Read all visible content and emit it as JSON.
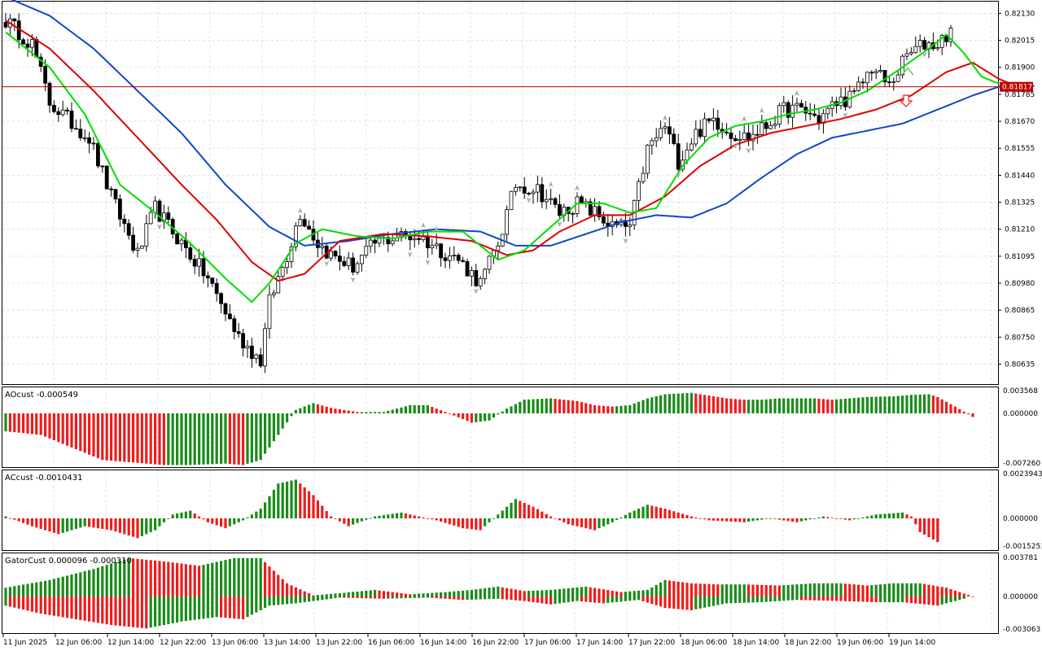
{
  "colors": {
    "background": "#ffffff",
    "grid": "#d9d9d9",
    "border": "#000000",
    "bull_body": "#ffffff",
    "bear_body": "#000000",
    "wick": "#000000",
    "lips": "#00dd00",
    "teeth": "#dd0000",
    "jaw": "#1146c8",
    "price_line": "#c00000",
    "hist_up": "#198c19",
    "hist_down": "#ee1c1c",
    "fractal": "#a8a8a8",
    "arrow_up": "#55cc55",
    "arrow_down": "#ee2222"
  },
  "main": {
    "price_ticks": [
      "0.82130",
      "0.82015",
      "0.81900",
      "0.81785",
      "0.81670",
      "0.81555",
      "0.81440",
      "0.81325",
      "0.81210",
      "0.81095",
      "0.80980",
      "0.80865",
      "0.80750",
      "0.80635"
    ],
    "current_price_label": "0.81817",
    "current_price": 0.81817
  },
  "ao": {
    "label": "AOcust -0.000549",
    "ticks": [
      "0.003568",
      "0.000000",
      "-0.007260"
    ]
  },
  "ac": {
    "label": "ACcust -0.0010431",
    "ticks": [
      "0.0023943",
      "0.000000",
      "-0.0015251"
    ]
  },
  "gator": {
    "label": "GatorCust 0.000096 -0.000310",
    "ticks": [
      "0.003781",
      "0.000000",
      "-0.003063"
    ]
  },
  "time_axis": [
    "11 Jun 2025",
    "12 Jun 06:00",
    "12 Jun 14:00",
    "12 Jun 22:00",
    "13 Jun 06:00",
    "13 Jun 14:00",
    "13 Jun 22:00",
    "16 Jun 06:00",
    "16 Jun 14:00",
    "16 Jun 22:00",
    "17 Jun 06:00",
    "17 Jun 14:00",
    "17 Jun 22:00",
    "18 Jun 06:00",
    "18 Jun 14:00",
    "18 Jun 22:00",
    "19 Jun 06:00",
    "19 Jun 14:00"
  ],
  "chart_data": [
    {
      "type": "candlestick",
      "pane": "main",
      "ylim": [
        0.8055,
        0.8218
      ],
      "series_names": [
        "lips",
        "teeth",
        "jaw"
      ],
      "anchors": [
        [
          0,
          0.821
        ],
        [
          6,
          0.82
        ],
        [
          10,
          0.8175
        ],
        [
          14,
          0.8168
        ],
        [
          19,
          0.816
        ],
        [
          24,
          0.8135
        ],
        [
          30,
          0.811
        ],
        [
          34,
          0.813
        ],
        [
          40,
          0.8115
        ],
        [
          46,
          0.81
        ],
        [
          53,
          0.8075
        ],
        [
          58,
          0.8065
        ],
        [
          60,
          0.809
        ],
        [
          64,
          0.811
        ],
        [
          67,
          0.8128
        ],
        [
          71,
          0.8115
        ],
        [
          74,
          0.811
        ],
        [
          79,
          0.8105
        ],
        [
          84,
          0.8115
        ],
        [
          89,
          0.8118
        ],
        [
          94,
          0.8118
        ],
        [
          99,
          0.8112
        ],
        [
          103,
          0.8108
        ],
        [
          108,
          0.8098
        ],
        [
          112,
          0.8115
        ],
        [
          116,
          0.814
        ],
        [
          121,
          0.8138
        ],
        [
          126,
          0.8128
        ],
        [
          130,
          0.8132
        ],
        [
          134,
          0.8128
        ],
        [
          138,
          0.8122
        ],
        [
          142,
          0.8122
        ],
        [
          146,
          0.8155
        ],
        [
          150,
          0.8165
        ],
        [
          153,
          0.815
        ],
        [
          157,
          0.8162
        ],
        [
          161,
          0.8168
        ],
        [
          165,
          0.8162
        ],
        [
          169,
          0.816
        ],
        [
          173,
          0.8165
        ],
        [
          177,
          0.8172
        ],
        [
          181,
          0.8172
        ],
        [
          185,
          0.8168
        ],
        [
          189,
          0.8175
        ],
        [
          193,
          0.8178
        ],
        [
          197,
          0.819
        ],
        [
          201,
          0.8182
        ],
        [
          205,
          0.8195
        ],
        [
          209,
          0.82
        ],
        [
          212,
          0.82
        ],
        [
          216,
          0.8208
        ],
        [
          219,
          0.8165
        ],
        [
          221,
          0.8158
        ],
        [
          224,
          0.8175
        ],
        [
          229,
          0.818
        ]
      ],
      "lips_anchors": [
        [
          0,
          0.8205
        ],
        [
          10,
          0.819
        ],
        [
          18,
          0.817
        ],
        [
          26,
          0.814
        ],
        [
          34,
          0.8128
        ],
        [
          42,
          0.8115
        ],
        [
          50,
          0.81
        ],
        [
          56,
          0.809
        ],
        [
          60,
          0.8098
        ],
        [
          66,
          0.8115
        ],
        [
          72,
          0.8121
        ],
        [
          80,
          0.8118
        ],
        [
          88,
          0.8117
        ],
        [
          96,
          0.812
        ],
        [
          104,
          0.812
        ],
        [
          112,
          0.8108
        ],
        [
          118,
          0.8112
        ],
        [
          124,
          0.8122
        ],
        [
          130,
          0.8132
        ],
        [
          136,
          0.8132
        ],
        [
          142,
          0.8128
        ],
        [
          148,
          0.813
        ],
        [
          154,
          0.8148
        ],
        [
          160,
          0.816
        ],
        [
          166,
          0.8165
        ],
        [
          172,
          0.8167
        ],
        [
          178,
          0.817
        ],
        [
          184,
          0.8172
        ],
        [
          190,
          0.8175
        ],
        [
          196,
          0.818
        ],
        [
          204,
          0.819
        ],
        [
          210,
          0.8198
        ],
        [
          214,
          0.8204
        ],
        [
          218,
          0.8196
        ],
        [
          222,
          0.8186
        ],
        [
          226,
          0.8183
        ]
      ],
      "teeth_anchors": [
        [
          0,
          0.821
        ],
        [
          10,
          0.8198
        ],
        [
          20,
          0.818
        ],
        [
          30,
          0.816
        ],
        [
          40,
          0.814
        ],
        [
          48,
          0.8125
        ],
        [
          56,
          0.8107
        ],
        [
          62,
          0.8099
        ],
        [
          68,
          0.8102
        ],
        [
          76,
          0.8116
        ],
        [
          86,
          0.8119
        ],
        [
          96,
          0.8118
        ],
        [
          106,
          0.8116
        ],
        [
          114,
          0.811
        ],
        [
          120,
          0.8112
        ],
        [
          126,
          0.812
        ],
        [
          134,
          0.8127
        ],
        [
          142,
          0.8127
        ],
        [
          150,
          0.8135
        ],
        [
          158,
          0.8148
        ],
        [
          166,
          0.8157
        ],
        [
          174,
          0.8162
        ],
        [
          182,
          0.8165
        ],
        [
          190,
          0.8168
        ],
        [
          198,
          0.8172
        ],
        [
          206,
          0.8178
        ],
        [
          214,
          0.8188
        ],
        [
          220,
          0.8192
        ],
        [
          226,
          0.8185
        ],
        [
          230,
          0.8182
        ]
      ],
      "jaw_anchors": [
        [
          0,
          0.822
        ],
        [
          10,
          0.8212
        ],
        [
          20,
          0.8198
        ],
        [
          30,
          0.818
        ],
        [
          40,
          0.8162
        ],
        [
          50,
          0.814
        ],
        [
          60,
          0.8122
        ],
        [
          68,
          0.8114
        ],
        [
          78,
          0.8116
        ],
        [
          88,
          0.8119
        ],
        [
          98,
          0.8121
        ],
        [
          108,
          0.812
        ],
        [
          116,
          0.8114
        ],
        [
          124,
          0.8114
        ],
        [
          132,
          0.8119
        ],
        [
          140,
          0.8124
        ],
        [
          148,
          0.8127
        ],
        [
          156,
          0.8126
        ],
        [
          164,
          0.8132
        ],
        [
          172,
          0.8143
        ],
        [
          180,
          0.8153
        ],
        [
          188,
          0.816
        ],
        [
          196,
          0.8163
        ],
        [
          204,
          0.8166
        ],
        [
          212,
          0.8172
        ],
        [
          220,
          0.8178
        ],
        [
          228,
          0.8183
        ],
        [
          234,
          0.8182
        ]
      ]
    },
    {
      "type": "histogram",
      "pane": "AOcust",
      "ylim": [
        -0.00726,
        0.003568
      ],
      "anchors": [
        [
          0,
          -0.0025
        ],
        [
          8,
          -0.003
        ],
        [
          14,
          -0.0045
        ],
        [
          22,
          -0.0065
        ],
        [
          28,
          -0.0068
        ],
        [
          36,
          -0.0072
        ],
        [
          42,
          -0.0072
        ],
        [
          50,
          -0.007
        ],
        [
          54,
          -0.0072
        ],
        [
          58,
          -0.0065
        ],
        [
          62,
          -0.003
        ],
        [
          66,
          0.0005
        ],
        [
          70,
          0.0015
        ],
        [
          74,
          0.0008
        ],
        [
          80,
          0.0002
        ],
        [
          86,
          0.0002
        ],
        [
          92,
          0.0012
        ],
        [
          96,
          0.0012
        ],
        [
          102,
          -0.0003
        ],
        [
          106,
          -0.0013
        ],
        [
          110,
          -0.001
        ],
        [
          114,
          0.0007
        ],
        [
          118,
          0.002
        ],
        [
          124,
          0.0022
        ],
        [
          130,
          0.0018
        ],
        [
          134,
          0.0012
        ],
        [
          138,
          0.001
        ],
        [
          142,
          0.0012
        ],
        [
          146,
          0.0022
        ],
        [
          150,
          0.0028
        ],
        [
          156,
          0.003
        ],
        [
          160,
          0.0026
        ],
        [
          164,
          0.0022
        ],
        [
          168,
          0.002
        ],
        [
          172,
          0.002
        ],
        [
          176,
          0.0022
        ],
        [
          184,
          0.0022
        ],
        [
          188,
          0.002
        ],
        [
          196,
          0.0024
        ],
        [
          202,
          0.0025
        ],
        [
          206,
          0.0027
        ],
        [
          210,
          0.0028
        ],
        [
          212,
          0.0024
        ],
        [
          216,
          0.001
        ],
        [
          220,
          -0.0005
        ]
      ]
    },
    {
      "type": "histogram",
      "pane": "ACcust",
      "ylim": [
        -0.0015251,
        0.0023943
      ],
      "anchors": [
        [
          0,
          0.0001
        ],
        [
          6,
          -0.0004
        ],
        [
          12,
          -0.0008
        ],
        [
          18,
          -0.0004
        ],
        [
          24,
          -0.0006
        ],
        [
          30,
          -0.001
        ],
        [
          34,
          -0.0006
        ],
        [
          38,
          0.0002
        ],
        [
          42,
          0.0004
        ],
        [
          46,
          -0.0002
        ],
        [
          50,
          -0.0005
        ],
        [
          54,
          -0.0001
        ],
        [
          58,
          0.0005
        ],
        [
          62,
          0.0018
        ],
        [
          66,
          0.002
        ],
        [
          70,
          0.0012
        ],
        [
          74,
          0.0001
        ],
        [
          78,
          -0.0004
        ],
        [
          84,
          0.0001
        ],
        [
          90,
          0.0003
        ],
        [
          94,
          0.0001
        ],
        [
          98,
          -0.0001
        ],
        [
          104,
          -0.0005
        ],
        [
          108,
          -0.0006
        ],
        [
          112,
          0.0002
        ],
        [
          116,
          0.001
        ],
        [
          120,
          0.0006
        ],
        [
          124,
          0.0001
        ],
        [
          128,
          -0.0003
        ],
        [
          134,
          -0.0006
        ],
        [
          138,
          -0.0002
        ],
        [
          142,
          0.0003
        ],
        [
          146,
          0.0007
        ],
        [
          150,
          0.0005
        ],
        [
          156,
          0.0001
        ],
        [
          160,
          -0.0001
        ],
        [
          168,
          -0.0002
        ],
        [
          174,
          0.0
        ],
        [
          180,
          -0.0002
        ],
        [
          186,
          0.0001
        ],
        [
          192,
          -0.0001
        ],
        [
          198,
          0.0002
        ],
        [
          204,
          0.0003
        ],
        [
          206,
          0.0001
        ],
        [
          208,
          -0.0007
        ],
        [
          212,
          -0.0012
        ]
      ]
    },
    {
      "type": "histogram",
      "pane": "GatorCust",
      "ylim": [
        -0.003063,
        0.003781
      ],
      "anchors": [
        [
          0,
          0.0008
        ],
        [
          10,
          0.0015
        ],
        [
          20,
          0.0025
        ],
        [
          28,
          0.0035
        ],
        [
          36,
          0.0032
        ],
        [
          44,
          0.0028
        ],
        [
          52,
          0.0035
        ],
        [
          58,
          0.0035
        ],
        [
          64,
          0.0012
        ],
        [
          70,
          0.0001
        ],
        [
          76,
          0.0003
        ],
        [
          84,
          0.0006
        ],
        [
          92,
          0.0002
        ],
        [
          100,
          0.0004
        ],
        [
          106,
          0.0006
        ],
        [
          112,
          0.0009
        ],
        [
          118,
          0.0005
        ],
        [
          124,
          0.0006
        ],
        [
          132,
          0.0009
        ],
        [
          140,
          0.0004
        ],
        [
          146,
          0.0006
        ],
        [
          150,
          0.0015
        ],
        [
          156,
          0.0012
        ],
        [
          162,
          0.0011
        ],
        [
          168,
          0.0011
        ],
        [
          176,
          0.001
        ],
        [
          184,
          0.0012
        ],
        [
          190,
          0.0012
        ],
        [
          196,
          0.001
        ],
        [
          202,
          0.0012
        ],
        [
          208,
          0.0012
        ],
        [
          214,
          0.0008
        ],
        [
          220,
          0.0
        ]
      ],
      "lower_anchors": [
        [
          0,
          -0.0008
        ],
        [
          8,
          -0.0015
        ],
        [
          16,
          -0.002
        ],
        [
          24,
          -0.0025
        ],
        [
          32,
          -0.0028
        ],
        [
          40,
          -0.0022
        ],
        [
          48,
          -0.0018
        ],
        [
          54,
          -0.002
        ],
        [
          60,
          -0.0008
        ],
        [
          66,
          -0.0006
        ],
        [
          70,
          -0.0004
        ],
        [
          76,
          -0.0001
        ],
        [
          86,
          -0.0002
        ],
        [
          96,
          -0.0001
        ],
        [
          104,
          -0.0003
        ],
        [
          112,
          -0.0002
        ],
        [
          118,
          -0.0004
        ],
        [
          124,
          -0.0007
        ],
        [
          130,
          -0.0004
        ],
        [
          136,
          -0.0006
        ],
        [
          144,
          -0.0003
        ],
        [
          150,
          -0.001
        ],
        [
          156,
          -0.0012
        ],
        [
          164,
          -0.0006
        ],
        [
          172,
          -0.0005
        ],
        [
          180,
          -0.0003
        ],
        [
          190,
          -0.0004
        ],
        [
          198,
          -0.0005
        ],
        [
          204,
          -0.0005
        ],
        [
          212,
          -0.0008
        ],
        [
          218,
          -0.0002
        ]
      ]
    }
  ]
}
